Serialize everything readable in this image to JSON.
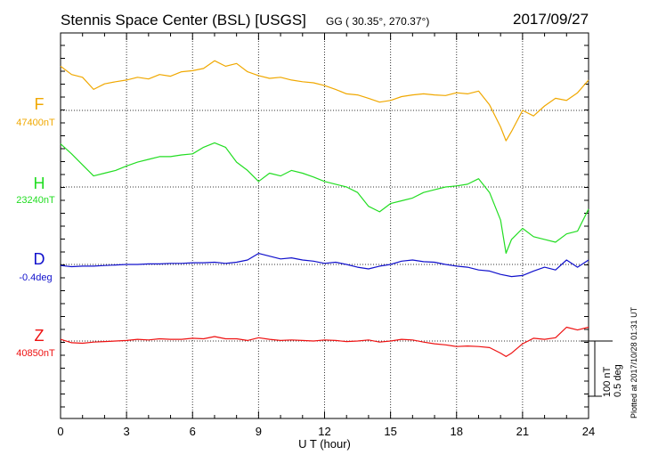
{
  "header": {
    "title": "Stennis Space Center (BSL)  [USGS]",
    "coords": "GG ( 30.35°, 270.37°)",
    "date": "2017/09/27"
  },
  "footer": {
    "plotted": "Plotted at 2017/10/28 01:31  UT",
    "scale_nt": "100 nT",
    "scale_deg": "0.5 deg"
  },
  "chart_data": {
    "type": "line",
    "xlabel": "U T (hour)",
    "xlim": [
      0,
      24
    ],
    "xticks": [
      "0",
      "3",
      "6",
      "9",
      "12",
      "15",
      "18",
      "21",
      "24"
    ],
    "grid": true,
    "series": [
      {
        "name": "F",
        "baseline_label": "47400nT",
        "color": "#f0a800",
        "x": [
          0,
          0.5,
          1,
          1.5,
          2,
          2.5,
          3,
          3.5,
          4,
          4.5,
          5,
          5.5,
          6,
          6.5,
          7,
          7.5,
          8,
          8.5,
          9,
          9.5,
          10,
          10.5,
          11,
          11.5,
          12,
          12.5,
          13,
          13.5,
          14,
          14.5,
          15,
          15.5,
          16,
          16.5,
          17,
          17.5,
          18,
          18.5,
          19,
          19.5,
          20,
          20.25,
          20.5,
          21,
          21.5,
          22,
          22.5,
          23,
          23.5,
          24
        ],
        "values": [
          80,
          65,
          60,
          38,
          48,
          52,
          55,
          60,
          57,
          65,
          62,
          70,
          72,
          76,
          90,
          80,
          85,
          70,
          63,
          58,
          60,
          55,
          52,
          50,
          45,
          38,
          30,
          28,
          22,
          15,
          18,
          25,
          28,
          30,
          28,
          27,
          32,
          30,
          35,
          10,
          -30,
          -55,
          -38,
          0,
          -10,
          8,
          22,
          18,
          32,
          55
        ]
      },
      {
        "name": "H",
        "baseline_label": "23240nT",
        "color": "#22dd22",
        "x": [
          0,
          0.5,
          1,
          1.5,
          2,
          2.5,
          3,
          3.5,
          4,
          4.5,
          5,
          5.5,
          6,
          6.5,
          7,
          7.5,
          8,
          8.5,
          9,
          9.5,
          10,
          10.5,
          11,
          11.5,
          12,
          12.5,
          13,
          13.5,
          14,
          14.5,
          15,
          15.5,
          16,
          16.5,
          17,
          17.5,
          18,
          18.5,
          19,
          19.5,
          20,
          20.25,
          20.5,
          21,
          21.5,
          22,
          22.5,
          23,
          23.5,
          24
        ],
        "values": [
          78,
          60,
          40,
          20,
          25,
          30,
          38,
          45,
          50,
          55,
          55,
          58,
          60,
          72,
          80,
          72,
          45,
          30,
          10,
          25,
          20,
          30,
          25,
          18,
          10,
          5,
          0,
          -10,
          -35,
          -45,
          -30,
          -25,
          -20,
          -10,
          -5,
          0,
          2,
          5,
          15,
          -10,
          -60,
          -120,
          -95,
          -75,
          -90,
          -95,
          -100,
          -85,
          -80,
          -40
        ]
      },
      {
        "name": "D",
        "baseline_label": "-0.4deg",
        "color": "#1010cc",
        "x": [
          0,
          0.5,
          1,
          1.5,
          2,
          2.5,
          3,
          3.5,
          4,
          4.5,
          5,
          5.5,
          6,
          6.5,
          7,
          7.5,
          8,
          8.5,
          9,
          9.5,
          10,
          10.5,
          11,
          11.5,
          12,
          12.5,
          13,
          13.5,
          14,
          14.5,
          15,
          15.5,
          16,
          16.5,
          17,
          17.5,
          18,
          18.5,
          19,
          19.5,
          20,
          20.5,
          21,
          21.5,
          22,
          22.5,
          23,
          23.5,
          24
        ],
        "values": [
          -2,
          -4,
          -3,
          -3,
          -2,
          -1,
          0,
          0,
          1,
          1,
          2,
          2,
          3,
          3,
          4,
          2,
          4,
          8,
          20,
          15,
          10,
          12,
          8,
          6,
          2,
          4,
          0,
          -5,
          -8,
          -3,
          0,
          6,
          8,
          5,
          4,
          0,
          -3,
          -5,
          -10,
          -12,
          -18,
          -22,
          -20,
          -12,
          -5,
          -10,
          8,
          -5,
          8
        ]
      },
      {
        "name": "Z",
        "baseline_label": "40850nT",
        "color": "#ee1111",
        "x": [
          0,
          0.5,
          1,
          1.5,
          2,
          2.5,
          3,
          3.5,
          4,
          4.5,
          5,
          5.5,
          6,
          6.5,
          7,
          7.5,
          8,
          8.5,
          9,
          9.5,
          10,
          10.5,
          11,
          11.5,
          12,
          12.5,
          13,
          13.5,
          14,
          14.5,
          15,
          15.5,
          16,
          16.5,
          17,
          17.5,
          18,
          18.5,
          19,
          19.5,
          20,
          20.25,
          20.5,
          21,
          21.5,
          22,
          22.5,
          23,
          23.5,
          24
        ],
        "values": [
          3,
          -3,
          -4,
          -2,
          -1,
          0,
          1,
          3,
          2,
          4,
          3,
          3,
          5,
          4,
          8,
          4,
          4,
          1,
          6,
          3,
          1,
          2,
          1,
          0,
          2,
          1,
          -1,
          0,
          2,
          -2,
          0,
          3,
          2,
          -2,
          -5,
          -7,
          -10,
          -9,
          -10,
          -12,
          -22,
          -28,
          -22,
          -5,
          5,
          3,
          6,
          25,
          20,
          25
        ]
      }
    ]
  }
}
